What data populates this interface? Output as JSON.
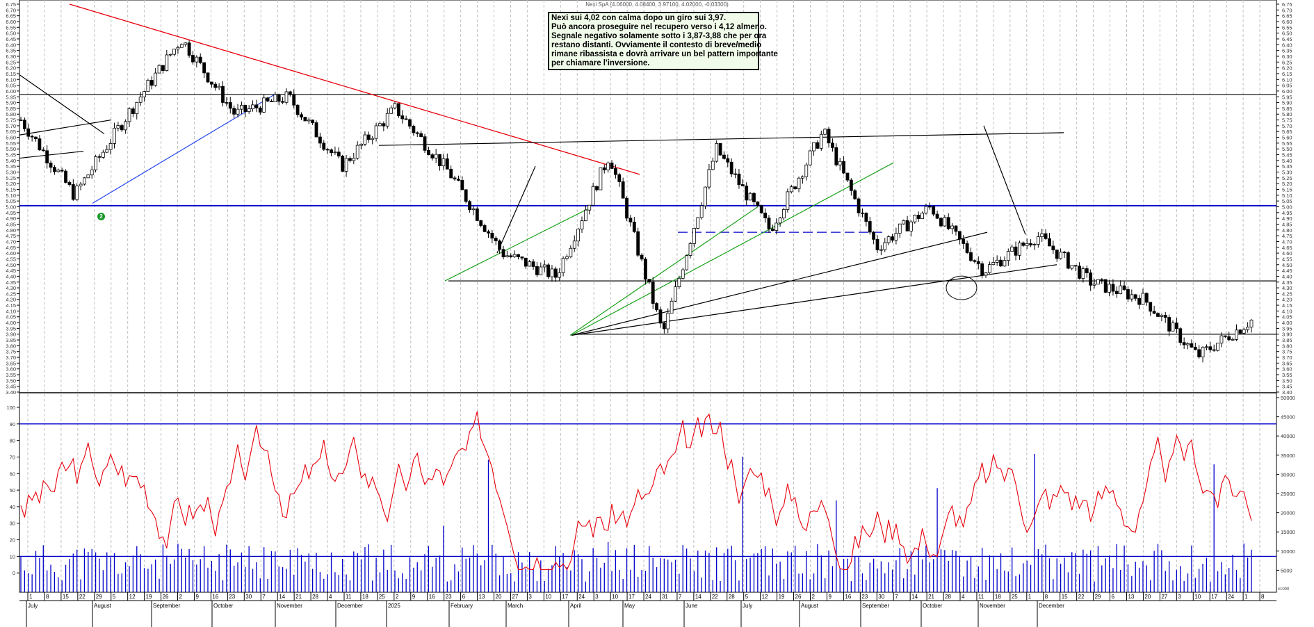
{
  "title": "Nexi SpA (4.06000, 4.08400, 3.97100, 4.02000, -0.03300)",
  "annotation": {
    "lines": [
      "Nexi sui 4,02 con calma dopo un giro sui 3,97.",
      "Può ancora proseguire nel recupero verso i 4,12 almeno.",
      "Segnale negativo solamente sotto i 3,87-3,88 che per ora",
      "restano distanti. Ovviamente il contesto di breve/medio",
      "rimane ribassista e dovrà arrivare un bel pattern importante",
      "per chiamare l'inversione."
    ]
  },
  "marker": {
    "label": "2",
    "color": "#1a9a2a"
  },
  "colors": {
    "up_candle": "#ffffff",
    "down_candle": "#000000",
    "oscillator": "#e8000b",
    "volume": "#0000cc",
    "support_blue": "#0000cc",
    "downtrend_red": "#e8000b",
    "uptrend_green": "#19a019",
    "uptrend_blue": "#2244ee",
    "grid": "#c0c0c0"
  },
  "chart_data": [
    {
      "type": "candlestick",
      "title": "Nexi SpA (4.06000, 4.08400, 3.97100, 4.02000, -0.03300)",
      "last": {
        "open": 4.06,
        "high": 4.084,
        "low": 3.971,
        "close": 4.02,
        "change": -0.033
      },
      "ylim": [
        3.4,
        6.75
      ],
      "yticks": [
        "6.75",
        "6.70",
        "6.65",
        "6.60",
        "6.55",
        "6.50",
        "6.45",
        "6.40",
        "6.35",
        "6.30",
        "6.25",
        "6.20",
        "6.15",
        "6.10",
        "6.05",
        "6.00",
        "5.95",
        "5.90",
        "5.85",
        "5.80",
        "5.75",
        "5.70",
        "5.65",
        "5.60",
        "5.55",
        "5.50",
        "5.45",
        "5.40",
        "5.35",
        "5.30",
        "5.25",
        "5.20",
        "5.15",
        "5.10",
        "5.05",
        "5.00",
        "4.95",
        "4.90",
        "4.85",
        "4.80",
        "4.75",
        "4.70",
        "4.65",
        "4.60",
        "4.55",
        "4.50",
        "4.45",
        "4.40",
        "4.35",
        "4.30",
        "4.25",
        "4.20",
        "4.15",
        "4.10",
        "4.05",
        "4.00",
        "3.95",
        "3.90",
        "3.85",
        "3.80",
        "3.75",
        "3.70",
        "3.65",
        "3.60",
        "3.55",
        "3.50",
        "3.45",
        "3.40"
      ],
      "horizontal_lines": [
        {
          "y": 5.97,
          "color": "#000000"
        },
        {
          "y": 5.01,
          "color": "#0000cc",
          "width": 2
        },
        {
          "y": 4.36,
          "color": "#000000"
        },
        {
          "y": 3.9,
          "color": "#000000"
        },
        {
          "y": 4.78,
          "color": "#0000cc",
          "dashed": true
        }
      ],
      "approx_path": [
        [
          "Jul 2024",
          5.75
        ],
        [
          "Aug 5",
          5.1
        ],
        [
          "Aug 12",
          5.8
        ],
        [
          "Sep 16",
          6.45
        ],
        [
          "Oct 7",
          5.8
        ],
        [
          "Oct 28",
          5.95
        ],
        [
          "Nov 18",
          5.35
        ],
        [
          "Dec 2",
          5.85
        ],
        [
          "Dec 23",
          5.3
        ],
        [
          "Jan 13 2025",
          4.6
        ],
        [
          "Feb 10",
          4.4
        ],
        [
          "Mar 17",
          5.45
        ],
        [
          "Apr 7",
          3.9
        ],
        [
          "May 12",
          5.5
        ],
        [
          "Jun 16",
          4.8
        ],
        [
          "Aug 25",
          5.65
        ],
        [
          "Sep 8",
          4.65
        ],
        [
          "Oct 6",
          5.0
        ],
        [
          "Oct 20",
          4.45
        ],
        [
          "Oct 27",
          4.75
        ],
        [
          "Nov 3",
          4.35
        ],
        [
          "Nov 10",
          4.2
        ],
        [
          "Nov 24",
          3.71
        ],
        [
          "Nov 28",
          4.02
        ]
      ]
    },
    {
      "type": "line+bar",
      "name": "Oscillator & Volume",
      "left_yticks": [
        "100",
        "90",
        "80",
        "70",
        "60",
        "50",
        "40",
        "30",
        "20",
        "10",
        "0"
      ],
      "right_yticks": [
        "50000",
        "45000",
        "40000",
        "35000",
        "30000",
        "25000",
        "20000",
        "15000",
        "10000",
        "5000"
      ],
      "right_unit": "x1000",
      "levels": [
        90,
        10
      ]
    }
  ],
  "x_axis": {
    "days": [
      "1",
      "8",
      "15",
      "22",
      "29",
      "5",
      "12",
      "19",
      "26",
      "2",
      "9",
      "16",
      "23",
      "30",
      "7",
      "14",
      "21",
      "28",
      "4",
      "11",
      "18",
      "25",
      "2",
      "9",
      "16",
      "23",
      "6",
      "13",
      "20",
      "27",
      "3",
      "10",
      "17",
      "24",
      "3",
      "10",
      "17",
      "24",
      "31",
      "7",
      "14",
      "22",
      "28",
      "5",
      "12",
      "19",
      "26",
      "2",
      "9",
      "16",
      "23",
      "30",
      "7",
      "14",
      "21",
      "28",
      "4",
      "11",
      "18",
      "25",
      "1",
      "8",
      "15",
      "22",
      "29",
      "6",
      "13",
      "20",
      "27",
      "3",
      "10",
      "17",
      "24",
      "1",
      "8"
    ],
    "months": [
      "July",
      "August",
      "September",
      "October",
      "November",
      "December",
      "2025",
      "February",
      "March",
      "April",
      "May",
      "June",
      "July",
      "August",
      "September",
      "October",
      "November",
      "December"
    ]
  }
}
